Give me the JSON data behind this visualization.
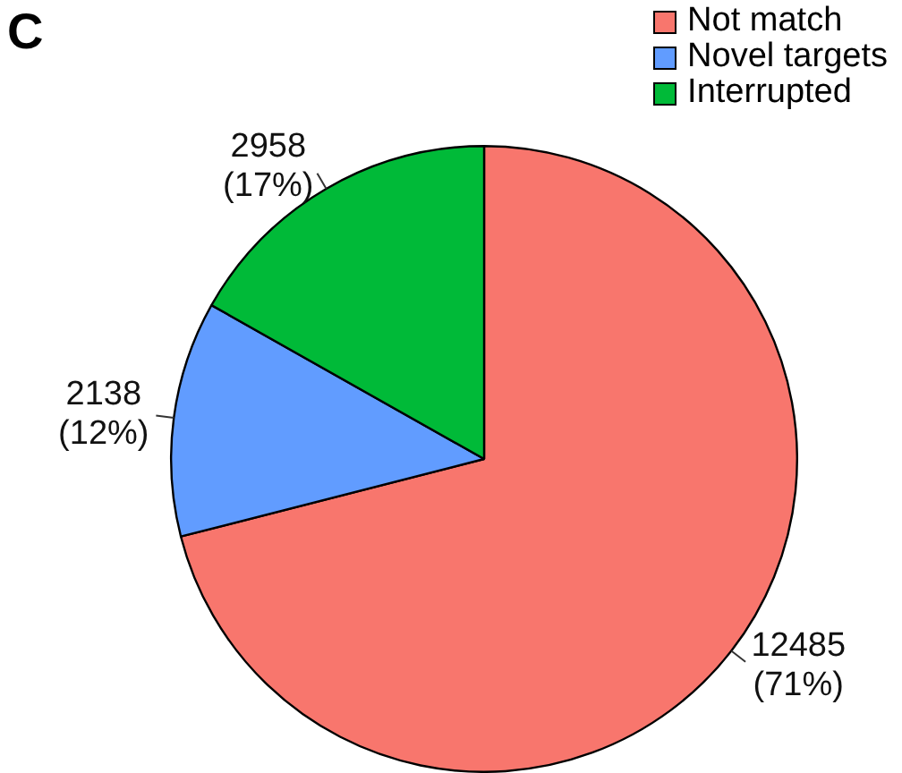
{
  "chart_data": {
    "type": "pie",
    "categories": [
      "Not match",
      "Novel targets",
      "Interrupted"
    ],
    "values": [
      12485,
      2138,
      2958
    ],
    "colors": [
      "#f8766d",
      "#619cff",
      "#00ba38"
    ],
    "value_labels": [
      "12485 (71%)",
      "2138 (12%)",
      "2958 (17%)"
    ],
    "legend": "top right",
    "annotations": [
      "C"
    ]
  }
}
